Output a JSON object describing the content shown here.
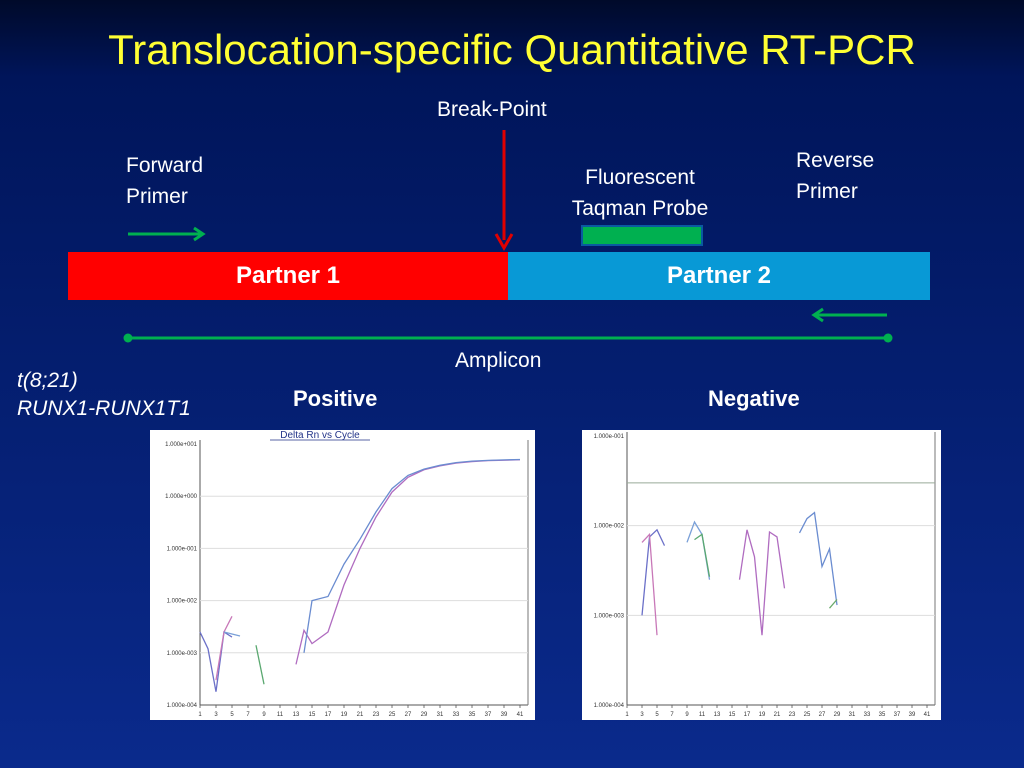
{
  "title": "Translocation-specific Quantitative RT-PCR",
  "diagram": {
    "breakpoint_label": "Break-Point",
    "forward_primer_label": [
      "Forward",
      "Primer"
    ],
    "probe_label": [
      "Fluorescent",
      "Taqman Probe"
    ],
    "reverse_primer_label": [
      "Reverse",
      "Primer"
    ],
    "partner1_label": "Partner 1",
    "partner2_label": "Partner 2",
    "amplicon_label": "Amplicon",
    "colors": {
      "partner1": "#ff0000",
      "partner2": "#0899d6",
      "primer": "#00b050",
      "breakpoint_arrow": "#e00000",
      "title": "#ffff33"
    }
  },
  "translocation": [
    "t(8;21)",
    "RUNX1-RUNX1T1"
  ],
  "positive_label": "Positive",
  "negative_label": "Negative",
  "chart_data": [
    {
      "type": "line",
      "title": "Delta Rn vs Cycle",
      "y_scale": "log",
      "y_ticks": [
        "1.000e+001",
        "1.000e+000",
        "1.000e-001",
        "1.000e-002",
        "1.000e-003",
        "1.000e-004"
      ],
      "x_ticks": [
        "1",
        "3",
        "5",
        "7",
        "9",
        "11",
        "13",
        "15",
        "17",
        "19",
        "21",
        "23",
        "25",
        "27",
        "29",
        "31",
        "33",
        "35",
        "37",
        "39",
        "41"
      ],
      "series": [
        {
          "values": [
            [
              1,
              0.0025
            ],
            [
              2,
              0.0012
            ],
            [
              3,
              0.00018
            ],
            [
              4,
              0.0025
            ],
            [
              5,
              0.002
            ]
          ]
        },
        {
          "values": [
            [
              3,
              0.0003
            ],
            [
              4,
              0.0025
            ],
            [
              5,
              0.005
            ]
          ]
        },
        {
          "values": [
            [
              4,
              0.0025
            ],
            [
              6,
              0.0021
            ]
          ]
        },
        {
          "values": [
            [
              8,
              0.0014
            ],
            [
              9,
              0.00025
            ]
          ]
        },
        {
          "values": [
            [
              13,
              0.0006
            ],
            [
              14,
              0.0027
            ],
            [
              15,
              0.0015
            ],
            [
              17,
              0.0025
            ],
            [
              19,
              0.02
            ],
            [
              21,
              0.1
            ],
            [
              23,
              0.4
            ],
            [
              25,
              1.2
            ],
            [
              27,
              2.3
            ],
            [
              29,
              3.2
            ],
            [
              31,
              3.8
            ],
            [
              33,
              4.3
            ],
            [
              35,
              4.6
            ],
            [
              37,
              4.8
            ],
            [
              39,
              4.9
            ],
            [
              41,
              5.0
            ]
          ]
        },
        {
          "values": [
            [
              14,
              0.001
            ],
            [
              15,
              0.01
            ],
            [
              17,
              0.012
            ],
            [
              19,
              0.05
            ],
            [
              21,
              0.15
            ],
            [
              23,
              0.5
            ],
            [
              25,
              1.4
            ],
            [
              27,
              2.5
            ],
            [
              29,
              3.3
            ],
            [
              31,
              3.9
            ],
            [
              33,
              4.4
            ],
            [
              35,
              4.7
            ],
            [
              37,
              4.85
            ],
            [
              39,
              4.95
            ],
            [
              41,
              5.05
            ]
          ]
        }
      ]
    },
    {
      "type": "line",
      "y_scale": "log",
      "y_ticks": [
        "1.000e-001",
        "1.000e-002",
        "1.000e-003",
        "1.000e-004"
      ],
      "x_ticks": [
        "1",
        "3",
        "5",
        "7",
        "9",
        "11",
        "13",
        "15",
        "17",
        "19",
        "21",
        "23",
        "25",
        "27",
        "29",
        "31",
        "33",
        "35",
        "37",
        "39",
        "41"
      ],
      "threshold": 0.03,
      "series": [
        {
          "values": [
            [
              3,
              0.001
            ],
            [
              4,
              0.0075
            ],
            [
              5,
              0.009
            ],
            [
              6,
              0.006
            ]
          ]
        },
        {
          "values": [
            [
              3,
              0.0065
            ],
            [
              4,
              0.008
            ],
            [
              5,
              0.0006
            ]
          ]
        },
        {
          "values": [
            [
              9,
              0.0065
            ],
            [
              10,
              0.011
            ],
            [
              11,
              0.008
            ],
            [
              12,
              0.0025
            ]
          ]
        },
        {
          "values": [
            [
              10,
              0.007
            ],
            [
              11,
              0.008
            ],
            [
              12,
              0.0027
            ]
          ]
        },
        {
          "values": [
            [
              16,
              0.0025
            ],
            [
              17,
              0.009
            ],
            [
              18,
              0.0045
            ],
            [
              19,
              0.0006
            ],
            [
              20,
              0.0085
            ],
            [
              21,
              0.0075
            ],
            [
              22,
              0.002
            ]
          ]
        },
        {
          "values": [
            [
              24,
              0.0083
            ],
            [
              25,
              0.012
            ],
            [
              26,
              0.014
            ],
            [
              27,
              0.0035
            ],
            [
              28,
              0.0055
            ],
            [
              29,
              0.0013
            ]
          ]
        },
        {
          "values": [
            [
              28,
              0.0012
            ],
            [
              29,
              0.0015
            ]
          ]
        }
      ]
    }
  ]
}
